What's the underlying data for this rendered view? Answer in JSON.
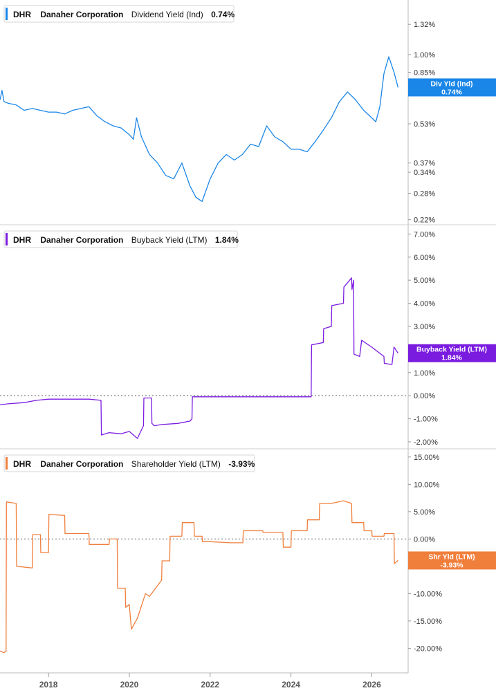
{
  "colors": {
    "dividend": "#1a86e8",
    "buyback": "#7a1be0",
    "shareholder": "#f07f3c",
    "axis": "#888888",
    "zero_line": "#555555",
    "divider": "#cccccc"
  },
  "x_axis": {
    "ticks": [
      "2018",
      "2020",
      "2022",
      "2024",
      "2026"
    ],
    "range": [
      2016.8,
      2026.9
    ]
  },
  "chart_data": [
    {
      "type": "line",
      "id": "dividend",
      "legend": {
        "ticker": "DHR",
        "company": "Danaher Corporation",
        "metric": "Dividend Yield (Ind)",
        "value": "0.74%"
      },
      "tag": {
        "line1": "Div Yld (Ind)",
        "line2": "0.74%"
      },
      "y_scale": "log",
      "ylim": [
        0.21,
        1.65
      ],
      "yticks": [
        {
          "v": 1.32,
          "label": "1.32%"
        },
        {
          "v": 1.0,
          "label": "1.00%"
        },
        {
          "v": 0.85,
          "label": "0.85%"
        },
        {
          "v": 0.53,
          "label": "0.53%"
        },
        {
          "v": 0.37,
          "label": "0.37%"
        },
        {
          "v": 0.34,
          "label": "0.34%"
        },
        {
          "v": 0.28,
          "label": "0.28%"
        },
        {
          "v": 0.22,
          "label": "0.22%"
        }
      ],
      "x": [
        2016.8,
        2016.85,
        2016.9,
        2017.0,
        2017.2,
        2017.4,
        2017.6,
        2017.8,
        2018.0,
        2018.2,
        2018.4,
        2018.6,
        2018.8,
        2019.0,
        2019.2,
        2019.4,
        2019.6,
        2019.8,
        2020.0,
        2020.1,
        2020.18,
        2020.3,
        2020.5,
        2020.7,
        2020.9,
        2021.1,
        2021.3,
        2021.5,
        2021.65,
        2021.8,
        2022.0,
        2022.2,
        2022.4,
        2022.6,
        2022.8,
        2023.0,
        2023.2,
        2023.4,
        2023.6,
        2023.8,
        2024.0,
        2024.2,
        2024.4,
        2024.6,
        2024.8,
        2025.0,
        2025.2,
        2025.4,
        2025.6,
        2025.8,
        2026.0,
        2026.1,
        2026.2,
        2026.3,
        2026.42,
        2026.55,
        2026.65
      ],
      "y": [
        0.66,
        0.72,
        0.65,
        0.64,
        0.63,
        0.6,
        0.61,
        0.6,
        0.59,
        0.59,
        0.58,
        0.6,
        0.61,
        0.62,
        0.57,
        0.54,
        0.52,
        0.51,
        0.48,
        0.46,
        0.56,
        0.47,
        0.4,
        0.37,
        0.33,
        0.32,
        0.37,
        0.3,
        0.27,
        0.26,
        0.32,
        0.37,
        0.4,
        0.38,
        0.4,
        0.44,
        0.43,
        0.52,
        0.47,
        0.45,
        0.42,
        0.42,
        0.41,
        0.45,
        0.5,
        0.56,
        0.65,
        0.71,
        0.66,
        0.6,
        0.56,
        0.54,
        0.62,
        0.84,
        0.98,
        0.85,
        0.74
      ]
    },
    {
      "type": "line",
      "id": "buyback",
      "legend": {
        "ticker": "DHR",
        "company": "Danaher Corporation",
        "metric": "Buyback Yield (LTM)",
        "value": "1.84%"
      },
      "tag": {
        "line1": "Buyback Yield (LTM)",
        "line2": "1.84%"
      },
      "ylim": [
        -2.3,
        7.4
      ],
      "zero_line": true,
      "yticks": [
        {
          "v": 7,
          "label": "7.00%"
        },
        {
          "v": 6,
          "label": "6.00%"
        },
        {
          "v": 5,
          "label": "5.00%"
        },
        {
          "v": 4,
          "label": "4.00%"
        },
        {
          "v": 3,
          "label": "3.00%"
        },
        {
          "v": 2,
          "label": "2.00%"
        },
        {
          "v": 1,
          "label": "1.00%"
        },
        {
          "v": 0,
          "label": "0.00%"
        },
        {
          "v": -1,
          "label": "-1.00%"
        },
        {
          "v": -2,
          "label": "-2.00%"
        }
      ],
      "x": [
        2016.8,
        2017.0,
        2017.4,
        2017.7,
        2018.0,
        2018.5,
        2019.0,
        2019.3,
        2019.31,
        2019.5,
        2019.8,
        2020.0,
        2020.2,
        2020.35,
        2020.36,
        2020.55,
        2020.56,
        2020.62,
        2020.8,
        2021.2,
        2021.5,
        2021.55,
        2021.56,
        2022.0,
        2023.0,
        2024.0,
        2024.5,
        2024.51,
        2024.8,
        2024.81,
        2025.0,
        2025.01,
        2025.3,
        2025.31,
        2025.5,
        2025.51,
        2025.55,
        2025.56,
        2025.7,
        2025.75,
        2026.0,
        2026.3,
        2026.31,
        2026.5,
        2026.55,
        2026.65
      ],
      "y": [
        -0.4,
        -0.35,
        -0.3,
        -0.2,
        -0.15,
        -0.15,
        -0.15,
        -0.2,
        -1.7,
        -1.6,
        -1.65,
        -1.55,
        -1.85,
        -1.3,
        -0.1,
        -0.1,
        -1.2,
        -1.3,
        -1.25,
        -1.2,
        -1.1,
        -1.0,
        -0.05,
        -0.05,
        -0.05,
        -0.05,
        -0.05,
        2.2,
        2.3,
        2.9,
        3.0,
        3.9,
        4.0,
        4.7,
        5.1,
        4.6,
        5.0,
        1.8,
        1.7,
        2.4,
        2.1,
        1.7,
        1.4,
        1.35,
        2.1,
        1.84
      ]
    },
    {
      "type": "line",
      "id": "shareholder",
      "legend": {
        "ticker": "DHR",
        "company": "Danaher Corporation",
        "metric": "Shareholder Yield (LTM)",
        "value": "-3.93%"
      },
      "tag": {
        "line1": "Shr Yld (LTM)",
        "line2": "-3.93%"
      },
      "ylim": [
        -24.5,
        16.5
      ],
      "zero_line": true,
      "yticks": [
        {
          "v": 15,
          "label": "15.00%"
        },
        {
          "v": 10,
          "label": "10.00%"
        },
        {
          "v": 5,
          "label": "5.00%"
        },
        {
          "v": 0,
          "label": "0.00%"
        },
        {
          "v": -5,
          "label": "-5.00%"
        },
        {
          "v": -10,
          "label": "-10.00%"
        },
        {
          "v": -15,
          "label": "-15.00%"
        },
        {
          "v": -20,
          "label": "-20.00%"
        }
      ],
      "x": [
        2016.8,
        2016.9,
        2016.95,
        2016.96,
        2017.2,
        2017.21,
        2017.6,
        2017.61,
        2017.8,
        2017.81,
        2018.0,
        2018.01,
        2018.4,
        2018.41,
        2019.0,
        2019.01,
        2019.5,
        2019.51,
        2019.7,
        2019.71,
        2019.9,
        2019.91,
        2020.0,
        2020.05,
        2020.2,
        2020.4,
        2020.5,
        2020.6,
        2020.8,
        2020.81,
        2021.0,
        2021.01,
        2021.3,
        2021.31,
        2021.6,
        2021.61,
        2021.8,
        2021.81,
        2022.0,
        2022.5,
        2022.81,
        2022.82,
        2023.3,
        2023.31,
        2023.8,
        2023.81,
        2024.0,
        2024.01,
        2024.4,
        2024.41,
        2024.7,
        2024.71,
        2025.0,
        2025.3,
        2025.5,
        2025.51,
        2025.8,
        2025.81,
        2026.0,
        2026.01,
        2026.3,
        2026.31,
        2026.55,
        2026.56,
        2026.65
      ],
      "y": [
        -20.5,
        -20.8,
        -20.5,
        6.8,
        6.5,
        -5.0,
        -5.3,
        0.8,
        0.8,
        -2.5,
        -2.5,
        4.5,
        4.3,
        1.0,
        1.0,
        -1.0,
        -1.0,
        0.0,
        0.0,
        -9.0,
        -9.0,
        -12.5,
        -12.0,
        -16.5,
        -14.5,
        -10.0,
        -10.5,
        -9.5,
        -7.5,
        -4.0,
        -4.0,
        0.5,
        0.5,
        3.0,
        3.0,
        0.5,
        0.5,
        -0.5,
        -0.5,
        -0.7,
        -0.7,
        1.5,
        1.5,
        1.2,
        1.2,
        -1.5,
        -1.5,
        1.5,
        1.5,
        3.5,
        3.5,
        6.5,
        6.5,
        7.0,
        6.5,
        3.0,
        3.0,
        1.5,
        1.5,
        0.5,
        0.5,
        1.0,
        1.0,
        -4.5,
        -3.93
      ]
    }
  ]
}
